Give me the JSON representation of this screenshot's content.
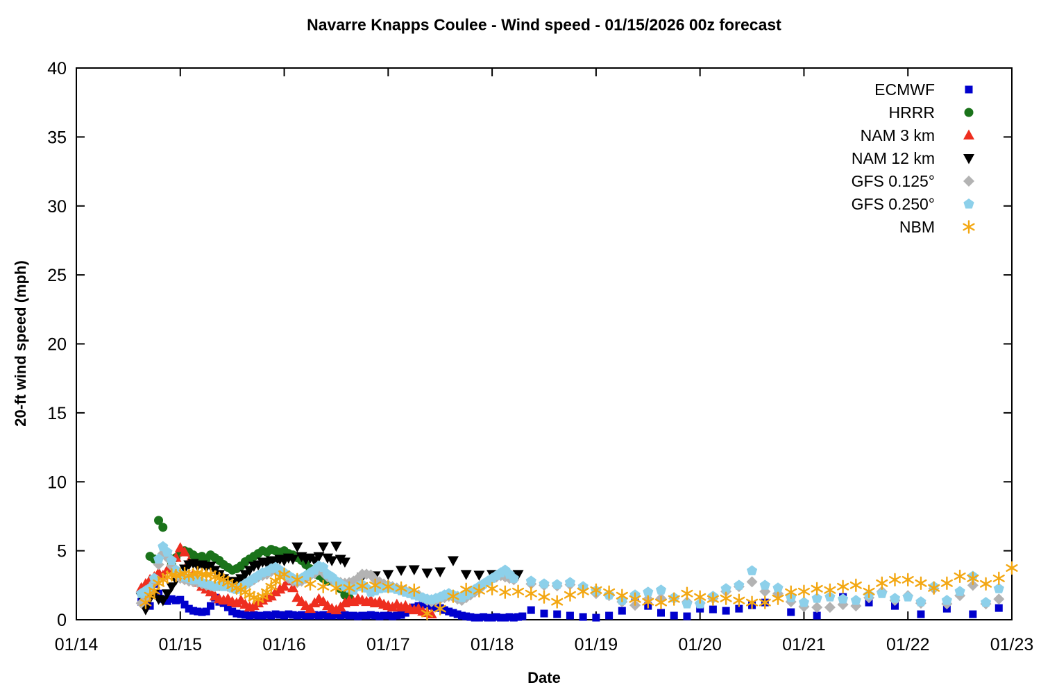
{
  "chart_data": {
    "type": "scatter",
    "title": "Navarre Knapps Coulee - Wind speed - 01/15/2026 00z forecast",
    "xlabel": "Date",
    "ylabel": "20-ft wind speed (mph)",
    "grid": false,
    "legend_position": "top-right-inside",
    "x_axis": {
      "tick_labels": [
        "01/14",
        "01/15",
        "01/16",
        "01/17",
        "01/18",
        "01/19",
        "01/20",
        "01/21",
        "01/22",
        "01/23"
      ],
      "range_days": [
        0,
        9
      ],
      "note": "x expressed in days after 01/14 00:00"
    },
    "y_axis": {
      "ticks": [
        0,
        5,
        10,
        15,
        20,
        25,
        30,
        35,
        40
      ],
      "ylim": [
        0,
        40
      ]
    },
    "series": [
      {
        "name": "ECMWF",
        "key": "ecmwf",
        "marker": "square",
        "color": "#0000cd",
        "segments": [
          {
            "start_day": 0.625,
            "step_days": 0.0416667,
            "values": [
              1.3,
              1.15,
              1.0,
              2.6,
              1.9,
              1.5,
              1.35,
              1.5,
              1.4,
              1.45,
              1.1,
              0.8,
              0.65,
              0.6,
              0.55,
              0.6,
              1.0,
              1.6,
              1.3,
              1.2,
              0.9,
              0.6,
              0.45,
              0.4,
              0.35,
              0.3,
              0.35,
              0.3,
              0.3,
              0.35,
              0.3,
              0.4,
              0.35,
              0.3,
              0.4,
              0.35,
              0.3,
              0.35,
              0.3,
              0.3,
              0.35,
              0.3,
              0.35,
              0.3,
              0.3,
              0.35,
              0.3,
              0.35,
              0.3,
              0.3,
              0.25,
              0.3,
              0.3,
              0.35,
              0.3,
              0.25,
              0.3,
              0.3,
              0.25,
              0.3,
              0.35,
              0.5,
              0.7,
              0.9,
              1.0,
              1.15,
              1.1,
              1.0,
              0.9,
              0.85,
              0.7,
              0.6,
              0.5,
              0.4,
              0.3,
              0.25,
              0.2,
              0.15,
              0.15,
              0.2,
              0.15,
              0.15,
              0.2,
              0.15,
              0.15,
              0.2,
              0.15,
              0.2,
              0.25
            ]
          },
          {
            "start_day": 4.375,
            "step_days": 0.125,
            "values": [
              0.7,
              0.45,
              0.4,
              0.3,
              0.2,
              0.15,
              0.3,
              0.65,
              1.65,
              1.0,
              0.5,
              0.3,
              0.25,
              0.8,
              0.75,
              0.65,
              0.8,
              1.05,
              1.25
            ]
          },
          {
            "start_day": 6.875,
            "step_days": 0.25,
            "values": [
              0.55,
              0.3,
              1.65,
              1.25,
              1.0,
              0.4,
              0.8,
              0.4,
              0.85
            ]
          }
        ]
      },
      {
        "name": "HRRR",
        "key": "hrrr",
        "marker": "circle",
        "color": "#1a731a",
        "segments": [
          {
            "start_day": 0.708,
            "step_days": 0.0416667,
            "values": [
              4.6,
              4.4,
              7.2,
              6.7,
              4.7,
              4.0,
              4.5,
              4.9,
              5.0,
              4.9,
              4.7,
              4.5,
              4.6,
              4.4,
              4.7,
              4.5,
              4.3,
              4.0,
              3.8,
              3.6,
              3.7,
              3.9,
              4.2,
              4.4,
              4.6,
              4.8,
              5.0,
              4.9,
              5.1,
              5.0,
              4.9,
              5.0,
              4.8,
              4.7,
              4.5,
              4.3,
              4.0,
              3.7,
              3.5,
              3.2,
              3.0,
              2.8,
              2.9,
              2.8,
              2.25,
              1.8,
              1.6
            ]
          }
        ]
      },
      {
        "name": "NAM 3 km",
        "key": "nam3",
        "marker": "triangle-up",
        "color": "#ee2e1f",
        "segments": [
          {
            "start_day": 0.625,
            "step_days": 0.0416667,
            "values": [
              2.3,
              2.6,
              2.9,
              3.1,
              3.4,
              3.2,
              3.6,
              4.0,
              4.5,
              5.2,
              4.9,
              4.2,
              3.3,
              2.7,
              2.4,
              2.2,
              2.0,
              1.7,
              1.5,
              1.4,
              1.5,
              1.3,
              1.2,
              1.4,
              1.1,
              0.9,
              1.0,
              1.2,
              1.4,
              1.6,
              1.7,
              2.0,
              2.2,
              2.4,
              2.8,
              2.3,
              1.6,
              1.3,
              1.0,
              0.8,
              1.2,
              1.5,
              1.3,
              1.0,
              0.8,
              0.7,
              0.9,
              1.2,
              1.4,
              1.3,
              1.5,
              1.4,
              1.3,
              1.4,
              1.2,
              1.3,
              1.1,
              1.0,
              0.9,
              1.1,
              0.9,
              1.0,
              0.8,
              0.7,
              0.8,
              0.6,
              0.5,
              0.4
            ]
          }
        ]
      },
      {
        "name": "NAM 12 km",
        "key": "nam12",
        "marker": "triangle-down",
        "color": "#000000",
        "segments": [
          {
            "start_day": 0.625,
            "step_days": 0.0416667,
            "values": [
              1.65,
              0.75,
              1.55,
              1.9,
              1.5,
              1.4,
              1.9,
              2.4,
              2.9,
              3.3,
              3.7,
              4.0,
              4.1,
              3.9,
              4.0,
              3.8,
              3.9,
              3.6,
              3.3,
              3.0,
              2.8,
              2.7,
              2.8,
              3.0,
              3.3,
              3.6,
              3.9,
              4.0,
              4.2,
              4.1,
              4.3,
              4.2,
              4.4,
              4.3,
              4.5,
              4.4,
              5.3,
              4.6,
              4.4,
              4.5,
              4.3,
              4.6,
              5.3,
              4.5,
              4.3,
              5.35,
              4.4,
              4.2
            ]
          },
          {
            "start_day": 2.75,
            "step_days": 0.125,
            "values": [
              3.1,
              3.2,
              3.3,
              3.6,
              3.65,
              3.4,
              3.5,
              4.3,
              3.3,
              3.25,
              3.3,
              3.3,
              3.3
            ]
          }
        ]
      },
      {
        "name": "GFS 0.125°",
        "key": "gfs125",
        "marker": "diamond",
        "color": "#b3b3b3",
        "segments": [
          {
            "start_day": 0.625,
            "step_days": 0.0416667,
            "values": [
              1.2,
              1.5,
              2.1,
              2.7,
              4.0,
              4.8,
              4.5,
              3.9,
              3.3,
              3.0,
              2.9,
              2.8,
              2.75,
              2.7,
              2.6,
              2.5,
              2.45,
              2.4,
              2.45,
              2.5,
              2.4,
              2.3,
              2.2,
              2.3,
              2.5,
              2.7,
              2.9,
              3.1,
              3.2,
              3.3,
              3.5,
              3.6,
              3.4,
              3.2,
              3.0,
              2.8,
              2.7,
              2.8,
              3.0,
              3.2,
              3.35,
              3.6,
              3.4,
              3.1,
              2.9,
              2.8,
              2.7,
              2.65,
              2.7,
              2.8,
              3.0,
              3.3,
              3.3,
              3.25,
              2.9,
              2.75,
              2.6,
              2.5,
              2.4,
              2.3,
              2.2,
              2.1,
              2.0,
              1.9,
              1.8,
              1.6,
              1.4,
              1.3,
              1.4,
              1.5,
              1.6,
              1.7,
              1.65,
              1.5,
              1.4,
              1.6,
              1.8,
              2.0,
              2.2,
              2.5,
              2.8,
              3.0,
              3.1,
              3.2,
              3.1,
              3.0,
              2.9
            ]
          },
          {
            "start_day": 4.375,
            "step_days": 0.125,
            "values": [
              2.6,
              2.5,
              2.45,
              2.55,
              2.3,
              1.9,
              1.75,
              1.3,
              1.05,
              1.5,
              1.55,
              1.55,
              1.3,
              1.2,
              1.55,
              2.05,
              2.4,
              2.75,
              2.05,
              1.9,
              1.3,
              0.95,
              0.9,
              0.9,
              1.1,
              1.0,
              1.6,
              2.05,
              1.4,
              1.75,
              1.2,
              2.25,
              1.15,
              1.75,
              2.5,
              1.15,
              1.5
            ]
          }
        ]
      },
      {
        "name": "GFS 0.250°",
        "key": "gfs250",
        "marker": "pentagon",
        "color": "#8dd0ea",
        "segments": [
          {
            "start_day": 0.625,
            "step_days": 0.0416667,
            "values": [
              1.9,
              2.1,
              2.3,
              3.0,
              4.4,
              5.3,
              4.9,
              4.3,
              3.6,
              3.3,
              3.1,
              3.0,
              2.9,
              2.9,
              2.7,
              2.6,
              2.5,
              2.4,
              2.5,
              2.4,
              2.5,
              2.3,
              2.2,
              2.4,
              2.6,
              2.8,
              3.0,
              3.2,
              3.4,
              3.5,
              3.7,
              3.8,
              3.6,
              3.4,
              3.2,
              3.0,
              2.9,
              3.0,
              3.2,
              3.4,
              3.6,
              3.9,
              3.8,
              3.3,
              3.1,
              2.8,
              2.6,
              2.4,
              2.3,
              2.15,
              2.4,
              2.55,
              2.3,
              2.0,
              2.1,
              2.25,
              2.3,
              2.4,
              2.3,
              2.2,
              2.1,
              2.0,
              1.9,
              1.8,
              1.7,
              1.6,
              1.5,
              1.45,
              1.55,
              1.65,
              1.8,
              1.9,
              1.8,
              1.7,
              1.6,
              1.8,
              2.0,
              2.2,
              2.4,
              2.6,
              2.8,
              3.0,
              3.2,
              3.4,
              3.6,
              3.3,
              3.0
            ]
          },
          {
            "start_day": 4.375,
            "step_days": 0.125,
            "values": [
              2.8,
              2.6,
              2.55,
              2.7,
              2.4,
              2.1,
              1.8,
              1.4,
              1.8,
              2.0,
              2.15,
              1.6,
              1.15,
              1.15,
              1.7,
              2.25,
              2.5,
              3.55,
              2.5,
              2.3,
              1.6,
              1.25,
              1.55,
              1.65,
              1.5,
              1.4,
              1.8,
              1.9,
              1.55,
              1.65,
              1.3,
              2.4,
              1.4,
              2.05,
              3.15,
              1.25,
              2.25
            ]
          }
        ]
      },
      {
        "name": "NBM",
        "key": "nbm",
        "marker": "asterisk",
        "color": "#f3a712",
        "segments": [
          {
            "start_day": 0.667,
            "step_days": 0.0416667,
            "values": [
              1.25,
              1.75,
              2.1,
              2.65,
              2.9,
              3.1,
              3.25,
              3.2,
              3.3,
              3.35,
              3.2,
              3.3,
              3.4,
              3.3,
              3.25,
              3.3,
              3.1,
              3.0,
              2.9,
              2.7,
              2.5,
              2.3,
              2.2,
              2.0,
              1.8,
              1.6,
              1.5,
              1.7,
              2.0,
              2.4,
              2.8,
              3.1,
              3.3
            ]
          },
          {
            "start_day": 2.125,
            "step_days": 0.125,
            "values": [
              2.9,
              2.6,
              2.4,
              2.3,
              2.3,
              2.45,
              2.5,
              2.4,
              2.3,
              2.15,
              0.45,
              0.8,
              1.7,
              2.2,
              2.1,
              2.25,
              2.0,
              2.05,
              1.9,
              1.65,
              1.3,
              1.8,
              2.05,
              2.15,
              2.0,
              1.75,
              1.5,
              1.3,
              1.25,
              1.5,
              1.9,
              1.65,
              1.5,
              1.55,
              1.4,
              1.25,
              1.25,
              1.55,
              2.0,
              2.05,
              2.25,
              2.15,
              2.4,
              2.5,
              2.05,
              2.65,
              2.9,
              2.9,
              2.65,
              2.3,
              2.65,
              3.15,
              3.0,
              2.6,
              3.0,
              3.75
            ]
          }
        ]
      }
    ]
  }
}
